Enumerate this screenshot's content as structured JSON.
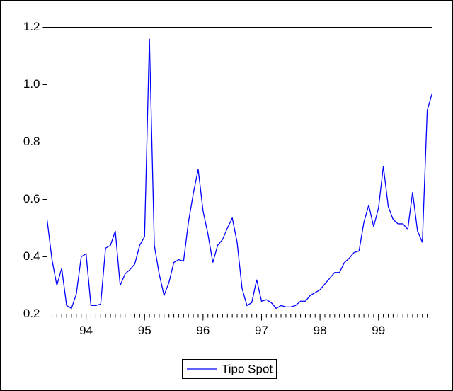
{
  "chart_data": {
    "type": "line",
    "x": [
      1993.333,
      1993.417,
      1993.5,
      1993.583,
      1993.667,
      1993.75,
      1993.833,
      1993.917,
      1994.0,
      1994.083,
      1994.167,
      1994.25,
      1994.333,
      1994.417,
      1994.5,
      1994.583,
      1994.667,
      1994.75,
      1994.833,
      1994.917,
      1995.0,
      1995.083,
      1995.167,
      1995.25,
      1995.333,
      1995.417,
      1995.5,
      1995.583,
      1995.667,
      1995.75,
      1995.833,
      1995.917,
      1996.0,
      1996.083,
      1996.167,
      1996.25,
      1996.333,
      1996.417,
      1996.5,
      1996.583,
      1996.667,
      1996.75,
      1996.833,
      1996.917,
      1997.0,
      1997.083,
      1997.167,
      1997.25,
      1997.333,
      1997.417,
      1997.5,
      1997.583,
      1997.667,
      1997.75,
      1997.833,
      1997.917,
      1998.0,
      1998.083,
      1998.167,
      1998.25,
      1998.333,
      1998.417,
      1998.5,
      1998.583,
      1998.667,
      1998.75,
      1998.833,
      1998.917,
      1999.0,
      1999.083,
      1999.167,
      1999.25,
      1999.333,
      1999.417,
      1999.5,
      1999.583,
      1999.667,
      1999.75,
      1999.833,
      1999.917
    ],
    "series": [
      {
        "name": "Tipo Spot",
        "color": "#0000ff",
        "values": [
          0.53,
          0.39,
          0.3,
          0.36,
          0.23,
          0.22,
          0.27,
          0.4,
          0.41,
          0.23,
          0.23,
          0.235,
          0.43,
          0.44,
          0.49,
          0.3,
          0.34,
          0.355,
          0.375,
          0.44,
          0.47,
          1.16,
          0.44,
          0.34,
          0.265,
          0.31,
          0.38,
          0.39,
          0.385,
          0.52,
          0.62,
          0.705,
          0.56,
          0.48,
          0.38,
          0.44,
          0.46,
          0.5,
          0.535,
          0.45,
          0.29,
          0.23,
          0.24,
          0.32,
          0.245,
          0.25,
          0.24,
          0.22,
          0.23,
          0.225,
          0.225,
          0.23,
          0.245,
          0.245,
          0.265,
          0.275,
          0.285,
          0.305,
          0.325,
          0.345,
          0.345,
          0.38,
          0.395,
          0.415,
          0.42,
          0.52,
          0.58,
          0.505,
          0.57,
          0.715,
          0.575,
          0.53,
          0.515,
          0.515,
          0.495,
          0.625,
          0.49,
          0.45,
          0.91,
          0.97
        ]
      }
    ],
    "xlim": [
      1993.333,
      1999.917
    ],
    "xticks": [
      {
        "value": 1994,
        "label": "94"
      },
      {
        "value": 1995,
        "label": "95"
      },
      {
        "value": 1996,
        "label": "96"
      },
      {
        "value": 1997,
        "label": "97"
      },
      {
        "value": 1998,
        "label": "98"
      },
      {
        "value": 1999,
        "label": "99"
      }
    ],
    "ylim": [
      0.2,
      1.2
    ],
    "yticks": [
      0.2,
      0.4,
      0.6,
      0.8,
      {
        "value": 1,
        "label": "1.0"
      },
      1.2
    ],
    "legend": "bottom"
  }
}
